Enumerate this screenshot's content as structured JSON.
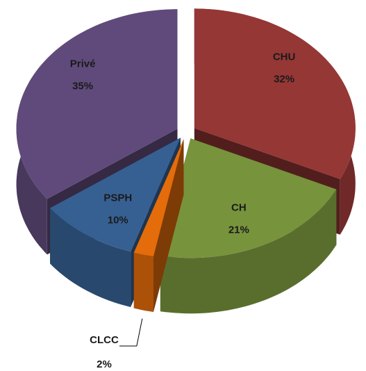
{
  "chart_data": {
    "type": "pie3d",
    "categories": [
      "CHU",
      "CH",
      "CLCC",
      "PSPH",
      "Privé"
    ],
    "values": [
      32,
      21,
      2,
      10,
      35
    ],
    "value_labels": [
      "32%",
      "21%",
      "2%",
      "10%",
      "35%"
    ],
    "colors": [
      "#953735",
      "#77933c",
      "#e46c0a",
      "#376092",
      "#604a7b"
    ]
  }
}
